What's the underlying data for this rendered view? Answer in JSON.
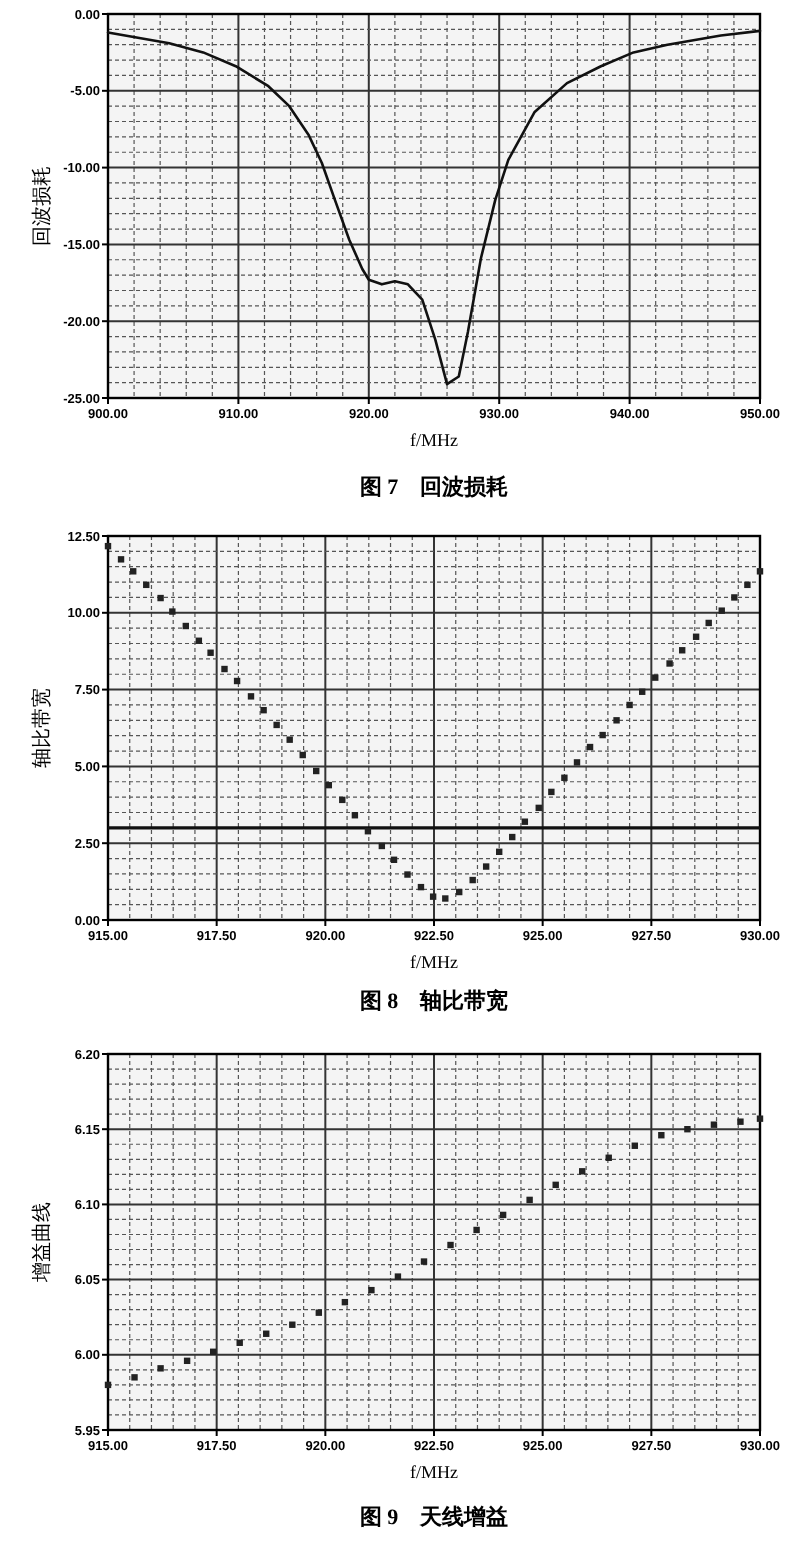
{
  "chart_data": [
    {
      "type": "line",
      "xlabel": "f/MHz",
      "ylabel": "回波损耗",
      "annotations": [
        "图 7　回波损耗"
      ],
      "grid": true,
      "marker": "none",
      "xlim": [
        900,
        950
      ],
      "ylim": [
        -25,
        0
      ],
      "xticks": [
        {
          "value": 900,
          "label": "900.00"
        },
        {
          "value": 902,
          "label": null
        },
        {
          "value": 904,
          "label": null
        },
        {
          "value": 906,
          "label": null
        },
        {
          "value": 908,
          "label": null
        },
        {
          "value": 910,
          "label": "910.00"
        },
        {
          "value": 912,
          "label": null
        },
        {
          "value": 914,
          "label": null
        },
        {
          "value": 916,
          "label": null
        },
        {
          "value": 918,
          "label": null
        },
        {
          "value": 920,
          "label": "920.00"
        },
        {
          "value": 922,
          "label": null
        },
        {
          "value": 924,
          "label": null
        },
        {
          "value": 926,
          "label": null
        },
        {
          "value": 928,
          "label": null
        },
        {
          "value": 930,
          "label": "930.00"
        },
        {
          "value": 932,
          "label": null
        },
        {
          "value": 934,
          "label": null
        },
        {
          "value": 936,
          "label": null
        },
        {
          "value": 938,
          "label": null
        },
        {
          "value": 940,
          "label": "940.00"
        },
        {
          "value": 942,
          "label": null
        },
        {
          "value": 944,
          "label": null
        },
        {
          "value": 946,
          "label": null
        },
        {
          "value": 948,
          "label": null
        },
        {
          "value": 950,
          "label": "950.00"
        }
      ],
      "yticks": [
        {
          "value": 0,
          "label": "0.00"
        },
        {
          "value": -1,
          "label": null
        },
        {
          "value": -2,
          "label": null
        },
        {
          "value": -3,
          "label": null
        },
        {
          "value": -4,
          "label": null
        },
        {
          "value": -5,
          "label": "-5.00"
        },
        {
          "value": -6,
          "label": null
        },
        {
          "value": -7,
          "label": null
        },
        {
          "value": -8,
          "label": null
        },
        {
          "value": -9,
          "label": null
        },
        {
          "value": -10,
          "label": "-10.00"
        },
        {
          "value": -11,
          "label": null
        },
        {
          "value": -12,
          "label": null
        },
        {
          "value": -13,
          "label": null
        },
        {
          "value": -14,
          "label": null
        },
        {
          "value": -15,
          "label": "-15.00"
        },
        {
          "value": -16,
          "label": null
        },
        {
          "value": -17,
          "label": null
        },
        {
          "value": -18,
          "label": null
        },
        {
          "value": -19,
          "label": null
        },
        {
          "value": -20,
          "label": "-20.00"
        },
        {
          "value": -21,
          "label": null
        },
        {
          "value": -22,
          "label": null
        },
        {
          "value": -23,
          "label": null
        },
        {
          "value": -24,
          "label": null
        },
        {
          "value": -25,
          "label": "-25.00"
        }
      ],
      "series": [
        {
          "color": "#111111",
          "x": [
            900,
            904.7,
            907.3,
            909.8,
            912.3,
            913.9,
            915.4,
            916.4,
            917.4,
            918.5,
            919.5,
            920,
            921,
            922,
            923,
            924.1,
            925.1,
            926,
            926.9,
            927.6,
            928.6,
            929.7,
            930.7,
            932.7,
            935.2,
            937.8,
            940.3,
            942.9,
            947,
            950
          ],
          "values": [
            -1.2,
            -1.9,
            -2.5,
            -3.4,
            -4.7,
            -6,
            -7.9,
            -9.7,
            -12.1,
            -14.7,
            -16.6,
            -17.3,
            -17.6,
            -17.4,
            -17.6,
            -18.6,
            -21.2,
            -24.1,
            -23.6,
            -20.7,
            -15.9,
            -12.1,
            -9.5,
            -6.4,
            -4.5,
            -3.4,
            -2.5,
            -2,
            -1.4,
            -1.1
          ]
        }
      ]
    },
    {
      "type": "scatter",
      "xlabel": "f/MHz",
      "ylabel": "轴比带宽",
      "annotations": [
        "图 8　轴比带宽"
      ],
      "grid": true,
      "marker": "square",
      "xlim": [
        915,
        930
      ],
      "ylim": [
        0,
        12.5
      ],
      "ref_lines": [
        {
          "axis": "y",
          "value": 3,
          "color": "#111111"
        }
      ],
      "xticks": [
        {
          "value": 915,
          "label": "915.00"
        },
        {
          "value": 915.5,
          "label": null
        },
        {
          "value": 916,
          "label": null
        },
        {
          "value": 916.5,
          "label": null
        },
        {
          "value": 917,
          "label": null
        },
        {
          "value": 917.5,
          "label": "917.50"
        },
        {
          "value": 918,
          "label": null
        },
        {
          "value": 918.5,
          "label": null
        },
        {
          "value": 919,
          "label": null
        },
        {
          "value": 919.5,
          "label": null
        },
        {
          "value": 920,
          "label": "920.00"
        },
        {
          "value": 920.5,
          "label": null
        },
        {
          "value": 921,
          "label": null
        },
        {
          "value": 921.5,
          "label": null
        },
        {
          "value": 922,
          "label": null
        },
        {
          "value": 922.5,
          "label": "922.50"
        },
        {
          "value": 923,
          "label": null
        },
        {
          "value": 923.5,
          "label": null
        },
        {
          "value": 924,
          "label": null
        },
        {
          "value": 924.5,
          "label": null
        },
        {
          "value": 925,
          "label": "925.00"
        },
        {
          "value": 925.5,
          "label": null
        },
        {
          "value": 926,
          "label": null
        },
        {
          "value": 926.5,
          "label": null
        },
        {
          "value": 927,
          "label": null
        },
        {
          "value": 927.5,
          "label": "927.50"
        },
        {
          "value": 928,
          "label": null
        },
        {
          "value": 928.5,
          "label": null
        },
        {
          "value": 929,
          "label": null
        },
        {
          "value": 929.5,
          "label": null
        },
        {
          "value": 930,
          "label": "930.00"
        }
      ],
      "yticks": [
        {
          "value": 0,
          "label": "0.00"
        },
        {
          "value": 0.5,
          "label": null
        },
        {
          "value": 1,
          "label": null
        },
        {
          "value": 1.5,
          "label": null
        },
        {
          "value": 2,
          "label": null
        },
        {
          "value": 2.5,
          "label": "2.50"
        },
        {
          "value": 3,
          "label": null
        },
        {
          "value": 3.5,
          "label": null
        },
        {
          "value": 4,
          "label": null
        },
        {
          "value": 4.5,
          "label": null
        },
        {
          "value": 5,
          "label": "5.00"
        },
        {
          "value": 5.5,
          "label": null
        },
        {
          "value": 6,
          "label": null
        },
        {
          "value": 6.5,
          "label": null
        },
        {
          "value": 7,
          "label": null
        },
        {
          "value": 7.5,
          "label": "7.50"
        },
        {
          "value": 8,
          "label": null
        },
        {
          "value": 8.5,
          "label": null
        },
        {
          "value": 9,
          "label": null
        },
        {
          "value": 9.5,
          "label": null
        },
        {
          "value": 10,
          "label": "10.00"
        },
        {
          "value": 10.5,
          "label": null
        },
        {
          "value": 11,
          "label": null
        },
        {
          "value": 11.5,
          "label": null
        },
        {
          "value": 12,
          "label": null
        },
        {
          "value": 12.5,
          "label": "12.50"
        }
      ],
      "series": [
        {
          "color": "#222222",
          "x": [
            915,
            915.3,
            915.58,
            915.88,
            916.21,
            916.48,
            916.79,
            917.09,
            917.36,
            917.68,
            917.97,
            918.29,
            918.58,
            918.88,
            919.18,
            919.48,
            919.79,
            920.08,
            920.39,
            920.68,
            920.98,
            921.3,
            921.58,
            921.89,
            922.2,
            922.48,
            922.76,
            923.08,
            923.39,
            923.7,
            924,
            924.3,
            924.59,
            924.91,
            925.2,
            925.5,
            925.79,
            926.09,
            926.38,
            926.7,
            927,
            927.29,
            927.59,
            927.92,
            928.21,
            928.53,
            928.82,
            929.12,
            929.41,
            929.71,
            930
          ],
          "values": [
            12.17,
            11.74,
            11.35,
            10.91,
            10.48,
            10.04,
            9.57,
            9.09,
            8.7,
            8.17,
            7.78,
            7.28,
            6.83,
            6.35,
            5.87,
            5.37,
            4.85,
            4.39,
            3.91,
            3.41,
            2.89,
            2.41,
            1.96,
            1.48,
            1.07,
            0.76,
            0.7,
            0.91,
            1.3,
            1.74,
            2.22,
            2.7,
            3.2,
            3.65,
            4.17,
            4.63,
            5.13,
            5.63,
            6.02,
            6.5,
            7,
            7.43,
            7.89,
            8.35,
            8.78,
            9.22,
            9.67,
            10.07,
            10.5,
            10.91,
            11.35
          ]
        }
      ]
    },
    {
      "type": "scatter",
      "xlabel": "f/MHz",
      "ylabel": "增益曲线",
      "annotations": [
        "图 9　天线增益"
      ],
      "grid": true,
      "marker": "square",
      "xlim": [
        915,
        930
      ],
      "ylim": [
        5.95,
        6.2
      ],
      "xticks": [
        {
          "value": 915,
          "label": "915.00"
        },
        {
          "value": 915.5,
          "label": null
        },
        {
          "value": 916,
          "label": null
        },
        {
          "value": 916.5,
          "label": null
        },
        {
          "value": 917,
          "label": null
        },
        {
          "value": 917.5,
          "label": "917.50"
        },
        {
          "value": 918,
          "label": null
        },
        {
          "value": 918.5,
          "label": null
        },
        {
          "value": 919,
          "label": null
        },
        {
          "value": 919.5,
          "label": null
        },
        {
          "value": 920,
          "label": "920.00"
        },
        {
          "value": 920.5,
          "label": null
        },
        {
          "value": 921,
          "label": null
        },
        {
          "value": 921.5,
          "label": null
        },
        {
          "value": 922,
          "label": null
        },
        {
          "value": 922.5,
          "label": "922.50"
        },
        {
          "value": 923,
          "label": null
        },
        {
          "value": 923.5,
          "label": null
        },
        {
          "value": 924,
          "label": null
        },
        {
          "value": 924.5,
          "label": null
        },
        {
          "value": 925,
          "label": "925.00"
        },
        {
          "value": 925.5,
          "label": null
        },
        {
          "value": 926,
          "label": null
        },
        {
          "value": 926.5,
          "label": null
        },
        {
          "value": 927,
          "label": null
        },
        {
          "value": 927.5,
          "label": "927.50"
        },
        {
          "value": 928,
          "label": null
        },
        {
          "value": 928.5,
          "label": null
        },
        {
          "value": 929,
          "label": null
        },
        {
          "value": 929.5,
          "label": null
        },
        {
          "value": 930,
          "label": "930.00"
        }
      ],
      "yticks": [
        {
          "value": 5.95,
          "label": "5.95"
        },
        {
          "value": 5.96,
          "label": null
        },
        {
          "value": 5.97,
          "label": null
        },
        {
          "value": 5.98,
          "label": null
        },
        {
          "value": 5.99,
          "label": null
        },
        {
          "value": 6,
          "label": "6.00"
        },
        {
          "value": 6.01,
          "label": null
        },
        {
          "value": 6.02,
          "label": null
        },
        {
          "value": 6.03,
          "label": null
        },
        {
          "value": 6.04,
          "label": null
        },
        {
          "value": 6.05,
          "label": "6.05"
        },
        {
          "value": 6.06,
          "label": null
        },
        {
          "value": 6.07,
          "label": null
        },
        {
          "value": 6.08,
          "label": null
        },
        {
          "value": 6.09,
          "label": null
        },
        {
          "value": 6.1,
          "label": "6.10"
        },
        {
          "value": 6.11,
          "label": null
        },
        {
          "value": 6.12,
          "label": null
        },
        {
          "value": 6.13,
          "label": null
        },
        {
          "value": 6.14,
          "label": null
        },
        {
          "value": 6.15,
          "label": "6.15"
        },
        {
          "value": 6.16,
          "label": null
        },
        {
          "value": 6.17,
          "label": null
        },
        {
          "value": 6.18,
          "label": null
        },
        {
          "value": 6.19,
          "label": null
        },
        {
          "value": 6.2,
          "label": "6.20"
        }
      ],
      "series": [
        {
          "color": "#222222",
          "x": [
            915,
            915.61,
            916.21,
            916.82,
            917.42,
            918.03,
            918.64,
            919.24,
            919.85,
            920.45,
            921.06,
            921.67,
            922.27,
            922.88,
            923.48,
            924.09,
            924.7,
            925.3,
            925.91,
            926.52,
            927.12,
            927.73,
            928.33,
            928.94,
            929.55,
            930
          ],
          "values": [
            5.98,
            5.985,
            5.991,
            5.996,
            6.002,
            6.008,
            6.014,
            6.02,
            6.028,
            6.035,
            6.043,
            6.052,
            6.062,
            6.073,
            6.083,
            6.093,
            6.103,
            6.113,
            6.122,
            6.131,
            6.139,
            6.146,
            6.15,
            6.153,
            6.155,
            6.157
          ]
        }
      ]
    }
  ]
}
